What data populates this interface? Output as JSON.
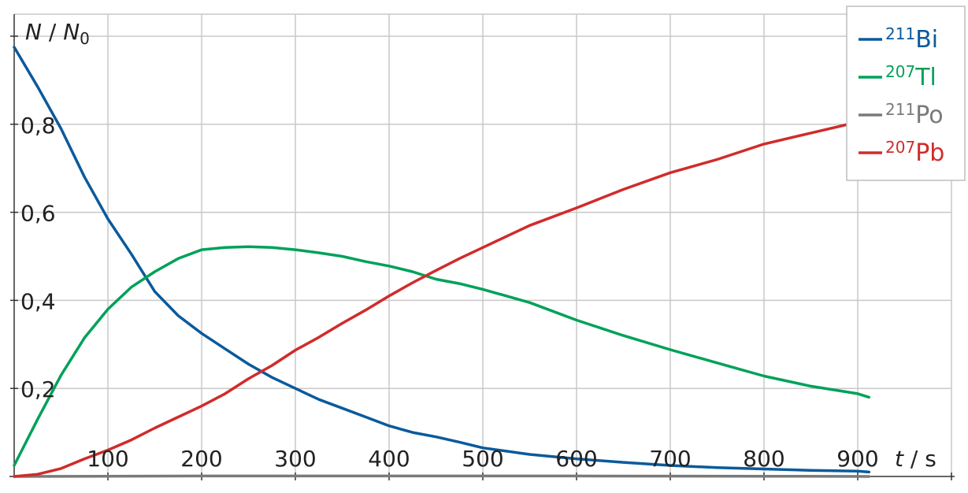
{
  "chart_data": {
    "type": "line",
    "xlabel_var": "t",
    "xlabel_unit": "s",
    "ylabel_num": "N",
    "ylabel_den": "N",
    "ylabel_den_sub": "0",
    "xlim": [
      0,
      1000
    ],
    "ylim": [
      0,
      1.05
    ],
    "grid": true,
    "legend_position": "top-right",
    "x_ticks": [
      {
        "value": 100,
        "label": "100"
      },
      {
        "value": 200,
        "label": "200"
      },
      {
        "value": 300,
        "label": "300"
      },
      {
        "value": 400,
        "label": "400"
      },
      {
        "value": 500,
        "label": "500"
      },
      {
        "value": 600,
        "label": "600"
      },
      {
        "value": 700,
        "label": "700"
      },
      {
        "value": 800,
        "label": "800"
      },
      {
        "value": 900,
        "label": "900"
      }
    ],
    "y_ticks": [
      {
        "value": 0.2,
        "label": "0,2"
      },
      {
        "value": 0.4,
        "label": "0,4"
      },
      {
        "value": 0.6,
        "label": "0,6"
      },
      {
        "value": 0.8,
        "label": "0,8"
      }
    ],
    "series": [
      {
        "name": "Bi",
        "mass": "211",
        "color": "#0a5a9c",
        "points": [
          [
            0,
            0.975
          ],
          [
            25,
            0.885
          ],
          [
            50,
            0.79
          ],
          [
            75,
            0.68
          ],
          [
            100,
            0.585
          ],
          [
            125,
            0.505
          ],
          [
            150,
            0.42
          ],
          [
            175,
            0.365
          ],
          [
            200,
            0.325
          ],
          [
            225,
            0.29
          ],
          [
            250,
            0.255
          ],
          [
            275,
            0.225
          ],
          [
            300,
            0.2
          ],
          [
            325,
            0.175
          ],
          [
            350,
            0.155
          ],
          [
            375,
            0.135
          ],
          [
            400,
            0.115
          ],
          [
            425,
            0.1
          ],
          [
            450,
            0.09
          ],
          [
            475,
            0.078
          ],
          [
            500,
            0.065
          ],
          [
            550,
            0.05
          ],
          [
            600,
            0.04
          ],
          [
            650,
            0.032
          ],
          [
            700,
            0.025
          ],
          [
            750,
            0.02
          ],
          [
            800,
            0.017
          ],
          [
            850,
            0.014
          ],
          [
            900,
            0.012
          ],
          [
            912,
            0.01
          ]
        ]
      },
      {
        "name": "Tl",
        "mass": "207",
        "color": "#00a15a",
        "points": [
          [
            0,
            0.025
          ],
          [
            25,
            0.13
          ],
          [
            50,
            0.23
          ],
          [
            75,
            0.315
          ],
          [
            100,
            0.38
          ],
          [
            125,
            0.43
          ],
          [
            150,
            0.465
          ],
          [
            175,
            0.495
          ],
          [
            200,
            0.515
          ],
          [
            225,
            0.52
          ],
          [
            250,
            0.522
          ],
          [
            275,
            0.52
          ],
          [
            300,
            0.515
          ],
          [
            325,
            0.508
          ],
          [
            350,
            0.5
          ],
          [
            375,
            0.488
          ],
          [
            400,
            0.478
          ],
          [
            425,
            0.465
          ],
          [
            450,
            0.448
          ],
          [
            475,
            0.438
          ],
          [
            500,
            0.425
          ],
          [
            550,
            0.395
          ],
          [
            600,
            0.355
          ],
          [
            650,
            0.32
          ],
          [
            700,
            0.288
          ],
          [
            750,
            0.258
          ],
          [
            800,
            0.228
          ],
          [
            850,
            0.205
          ],
          [
            900,
            0.188
          ],
          [
            912,
            0.18
          ]
        ]
      },
      {
        "name": "Po",
        "mass": "211",
        "color": "#7a7a7a",
        "points": [
          [
            0,
            0
          ],
          [
            200,
            0.001
          ],
          [
            400,
            0.001
          ],
          [
            600,
            0.001
          ],
          [
            800,
            0.0005
          ],
          [
            912,
            0
          ]
        ]
      },
      {
        "name": "Pb",
        "mass": "207",
        "color": "#d12b2b",
        "points": [
          [
            0,
            0
          ],
          [
            25,
            0.005
          ],
          [
            50,
            0.018
          ],
          [
            75,
            0.04
          ],
          [
            100,
            0.06
          ],
          [
            125,
            0.083
          ],
          [
            150,
            0.11
          ],
          [
            175,
            0.135
          ],
          [
            200,
            0.16
          ],
          [
            225,
            0.188
          ],
          [
            250,
            0.222
          ],
          [
            275,
            0.252
          ],
          [
            300,
            0.287
          ],
          [
            325,
            0.316
          ],
          [
            350,
            0.348
          ],
          [
            375,
            0.378
          ],
          [
            400,
            0.41
          ],
          [
            425,
            0.44
          ],
          [
            450,
            0.468
          ],
          [
            475,
            0.495
          ],
          [
            500,
            0.52
          ],
          [
            550,
            0.57
          ],
          [
            600,
            0.61
          ],
          [
            650,
            0.652
          ],
          [
            700,
            0.69
          ],
          [
            750,
            0.72
          ],
          [
            800,
            0.755
          ],
          [
            850,
            0.78
          ],
          [
            900,
            0.805
          ],
          [
            912,
            0.808
          ]
        ]
      }
    ]
  }
}
